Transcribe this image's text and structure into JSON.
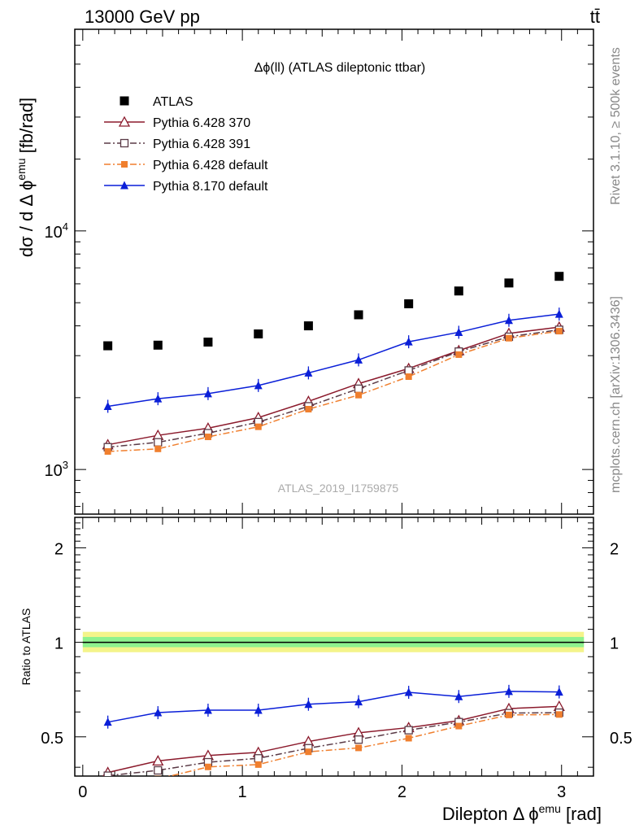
{
  "header": {
    "left": "13000 GeV pp",
    "right": "tt̄"
  },
  "side_labels": {
    "rivet": "Rivet 3.1.10, ≥ 500k events",
    "mcplots": "mcplots.cern.ch [arXiv:1306.3436]"
  },
  "colors": {
    "atlas": "#000000",
    "pythia6_370": "#8b1a2c",
    "pythia6_391": "#5a3a46",
    "pythia6_default": "#f07f2e",
    "pythia8_default": "#0a1fd8",
    "band_outer": "#f4f48a",
    "band_inner": "#8ef28e"
  },
  "chart_data": [
    {
      "type": "scatter",
      "panel": "main",
      "title": "Δϕ(ll) (ATLAS dileptonic ttbar)",
      "watermark": "ATLAS_2019_I1759875",
      "ylabel": "dσ / dΔϕ^emu [fb/rad]",
      "ylabel_parts": {
        "main": "dσ / d Δ ϕ",
        "sup": "emu",
        "unit": " [fb/rad]"
      },
      "yscale": "log",
      "ylim": [
        650,
        70000
      ],
      "xlim": [
        -0.05,
        3.2
      ],
      "y_tick_labels": [
        "10^3",
        "10^4"
      ],
      "grid": false,
      "legend_position": "top-left",
      "x": [
        0.157,
        0.471,
        0.785,
        1.1,
        1.414,
        1.728,
        2.042,
        2.356,
        2.67,
        2.985
      ],
      "series": [
        {
          "name": "ATLAS",
          "marker": "square-filled",
          "line": "none",
          "color_key": "atlas",
          "values": [
            3300,
            3320,
            3420,
            3700,
            4000,
            4450,
            4950,
            5600,
            6050,
            6450
          ]
        },
        {
          "name": "Pythia 6.428 370",
          "marker": "triangle-open",
          "line": "solid",
          "color_key": "pythia6_370",
          "values": [
            1270,
            1390,
            1490,
            1650,
            1930,
            2290,
            2650,
            3150,
            3720,
            3950
          ]
        },
        {
          "name": "Pythia 6.428 391",
          "marker": "square-open",
          "line": "dashdot",
          "color_key": "pythia6_391",
          "values": [
            1240,
            1300,
            1420,
            1580,
            1840,
            2180,
            2600,
            3120,
            3600,
            3850
          ]
        },
        {
          "name": "Pythia 6.428 default",
          "marker": "square-filled-small",
          "line": "dashdot",
          "color_key": "pythia6_default",
          "values": [
            1190,
            1220,
            1370,
            1510,
            1790,
            2050,
            2450,
            3030,
            3550,
            3800
          ]
        },
        {
          "name": "Pythia 8.170 default",
          "marker": "triangle-filled",
          "line": "solid",
          "color_key": "pythia8_default",
          "values": [
            1840,
            1980,
            2080,
            2250,
            2540,
            2880,
            3430,
            3760,
            4220,
            4480
          ]
        }
      ]
    },
    {
      "type": "line",
      "panel": "ratio",
      "ylabel": "Ratio to ATLAS",
      "xlabel": "Dilepton Δ ϕ^emu [rad]",
      "xlabel_parts": {
        "main": "Dilepton Δ ϕ",
        "sup": "emu",
        "unit": " [rad]"
      },
      "yscale": "log",
      "ylim": [
        0.375,
        2.5
      ],
      "xlim": [
        -0.05,
        3.2
      ],
      "y_tick_labels": [
        "0.5",
        "1",
        "2"
      ],
      "x_tick_labels": [
        "0",
        "1",
        "2",
        "3"
      ],
      "x_ticks": [
        0,
        1,
        2,
        3
      ],
      "reference_line": 1,
      "band": {
        "outer": [
          0.93,
          1.08
        ],
        "inner": [
          0.965,
          1.04
        ],
        "x_range": [
          0,
          3.14
        ]
      },
      "x": [
        0.157,
        0.471,
        0.785,
        1.1,
        1.414,
        1.728,
        2.042,
        2.356,
        2.67,
        2.985
      ],
      "series": [
        {
          "name": "Pythia 6.428 370",
          "color_key": "pythia6_370",
          "line": "solid",
          "marker": "triangle-open",
          "values": [
            0.385,
            0.419,
            0.436,
            0.446,
            0.483,
            0.515,
            0.535,
            0.563,
            0.615,
            0.625
          ]
        },
        {
          "name": "Pythia 6.428 391",
          "color_key": "pythia6_391",
          "line": "dashdot",
          "marker": "square-open",
          "values": [
            0.376,
            0.391,
            0.415,
            0.427,
            0.46,
            0.49,
            0.525,
            0.557,
            0.595,
            0.597
          ]
        },
        {
          "name": "Pythia 6.428 default",
          "color_key": "pythia6_default",
          "line": "dashdot",
          "marker": "square-filled-small",
          "values": [
            0.36,
            0.367,
            0.401,
            0.408,
            0.448,
            0.461,
            0.495,
            0.541,
            0.587,
            0.589
          ]
        },
        {
          "name": "Pythia 8.170 default",
          "color_key": "pythia8_default",
          "line": "solid",
          "marker": "triangle-filled",
          "values": [
            0.557,
            0.597,
            0.608,
            0.608,
            0.635,
            0.647,
            0.693,
            0.672,
            0.698,
            0.695
          ]
        }
      ]
    }
  ]
}
